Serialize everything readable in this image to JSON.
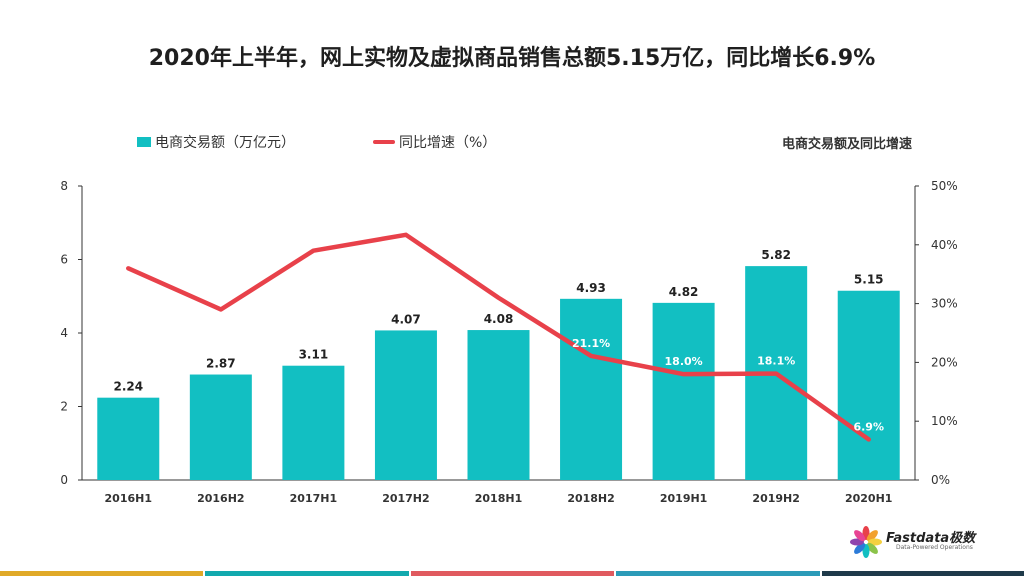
{
  "title": "2020年上半年，网上实物及虚拟商品销售总额5.15万亿，同比增长6.9%",
  "chart_label": "电商交易额及同比增速",
  "brand": {
    "name": "Fastdata极数",
    "tagline": "Data-Powered Operations"
  },
  "colors": {
    "bar": "#12BFC2",
    "line": "#E8414A",
    "footer": [
      "#E0A928",
      "#12A9AE",
      "#E05A5F",
      "#2C9BB8",
      "#1F3A4A"
    ]
  },
  "chart_data": {
    "type": "bar+line",
    "categories": [
      "2016H1",
      "2016H2",
      "2017H1",
      "2017H2",
      "2018H1",
      "2018H2",
      "2019H1",
      "2019H2",
      "2020H1"
    ],
    "series": [
      {
        "name": "电商交易额（万亿元）",
        "type": "bar",
        "axis": "left",
        "values": [
          2.24,
          2.87,
          3.11,
          4.07,
          4.08,
          4.93,
          4.82,
          5.82,
          5.15
        ],
        "labels": [
          "2.24",
          "2.87",
          "3.11",
          "4.07",
          "4.08",
          "4.93",
          "4.82",
          "5.82",
          "5.15"
        ]
      },
      {
        "name": "同比增速（%）",
        "type": "line",
        "axis": "right",
        "values": [
          36.0,
          29.0,
          39.0,
          41.7,
          31.0,
          21.1,
          18.0,
          18.1,
          6.9
        ],
        "labels": [
          "",
          "",
          "",
          "",
          "",
          "21.1%",
          "18.0%",
          "18.1%",
          "6.9%"
        ]
      }
    ],
    "y_left": {
      "min": 0,
      "max": 8,
      "ticks": [
        "0",
        "2",
        "4",
        "6",
        "8"
      ]
    },
    "y_right": {
      "min": 0,
      "max": 50,
      "ticks": [
        "0%",
        "10%",
        "20%",
        "30%",
        "40%",
        "50%"
      ]
    },
    "legend_position": "top-left",
    "grid": false
  }
}
